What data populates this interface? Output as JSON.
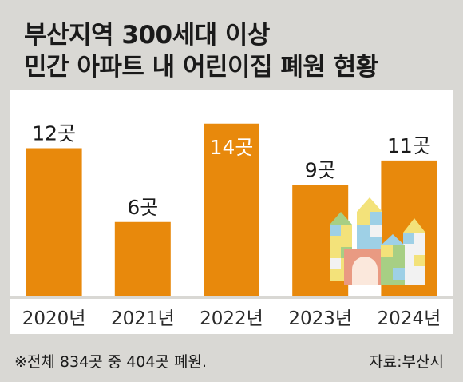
{
  "title_lines": [
    "부산지역 300세대 이상",
    "민간 아파트 내 어린이집 폐원 현황"
  ],
  "colors": {
    "bar": "#e8890c",
    "label": "#1a1a1a",
    "label_on_bar": "#ffffff",
    "frame": "#d9d8d4"
  },
  "chart_data": {
    "type": "bar",
    "title": "부산지역 300세대 이상 민간 아파트 내 어린이집 폐원 현황",
    "categories": [
      "2020년",
      "2021년",
      "2022년",
      "2023년",
      "2024년"
    ],
    "values": [
      12,
      6,
      14,
      9,
      11
    ],
    "data_labels": [
      "12곳",
      "6곳",
      "14곳",
      "9곳",
      "11곳"
    ],
    "highlight_index": 2,
    "ylim": [
      0,
      16
    ],
    "grid": false,
    "legend": "none"
  },
  "footnote": "※전체 834곳 중 404곳 폐원.",
  "source": "자료:부산시",
  "illustration": "toy-blocks-castle"
}
